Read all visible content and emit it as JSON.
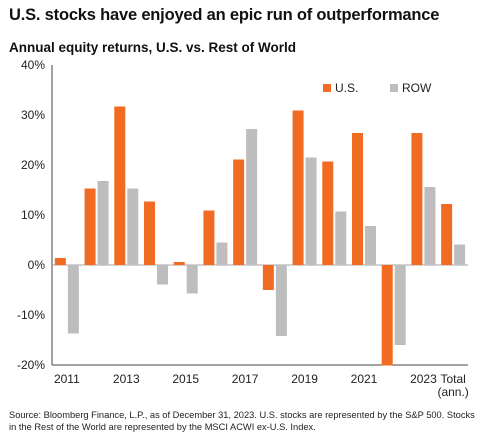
{
  "title": "U.S. stocks have enjoyed an epic run of outperformance",
  "source": "Source: Bloomberg Finance, L.P., as of December 31, 2023. U.S. stocks are represented by the S&P 500. Stocks in the Rest of the World are represented by the MSCI ACWI ex-U.S. Index.",
  "chart_data": {
    "type": "bar",
    "title": "Annual equity returns, U.S. vs. Rest of World",
    "categories": [
      "2011",
      "2012",
      "2013",
      "2014",
      "2015",
      "2016",
      "2017",
      "2018",
      "2019",
      "2020",
      "2021",
      "2022",
      "2023",
      "Total (ann.)"
    ],
    "x_tick_labels": [
      {
        "index": 0,
        "lines": [
          "2011"
        ]
      },
      {
        "index": 2,
        "lines": [
          "2013"
        ]
      },
      {
        "index": 4,
        "lines": [
          "2015"
        ]
      },
      {
        "index": 6,
        "lines": [
          "2017"
        ]
      },
      {
        "index": 8,
        "lines": [
          "2019"
        ]
      },
      {
        "index": 10,
        "lines": [
          "2021"
        ]
      },
      {
        "index": 12,
        "lines": [
          "2023"
        ]
      },
      {
        "index": 13,
        "lines": [
          "Total",
          "(ann.)"
        ]
      }
    ],
    "series": [
      {
        "name": "U.S.",
        "color": "#f26b22",
        "values": [
          1.4,
          15.3,
          31.7,
          12.7,
          0.6,
          10.9,
          21.1,
          -5.0,
          30.9,
          20.7,
          26.4,
          -20.1,
          26.4,
          12.2
        ]
      },
      {
        "name": "ROW",
        "color": "#bdbdbd",
        "values": [
          -13.7,
          16.8,
          15.3,
          -3.9,
          -5.7,
          4.5,
          27.2,
          -14.2,
          21.5,
          10.7,
          7.8,
          -16.0,
          15.6,
          4.1
        ]
      }
    ],
    "ylim": [
      -20,
      40
    ],
    "yticks": [
      -20,
      -10,
      0,
      10,
      20,
      30,
      40
    ],
    "ytick_labels": [
      "-20%",
      "-10%",
      "0%",
      "10%",
      "20%",
      "30%",
      "40%"
    ],
    "xlabel": "",
    "ylabel": "",
    "grid": false,
    "legend_position": "top-right"
  }
}
